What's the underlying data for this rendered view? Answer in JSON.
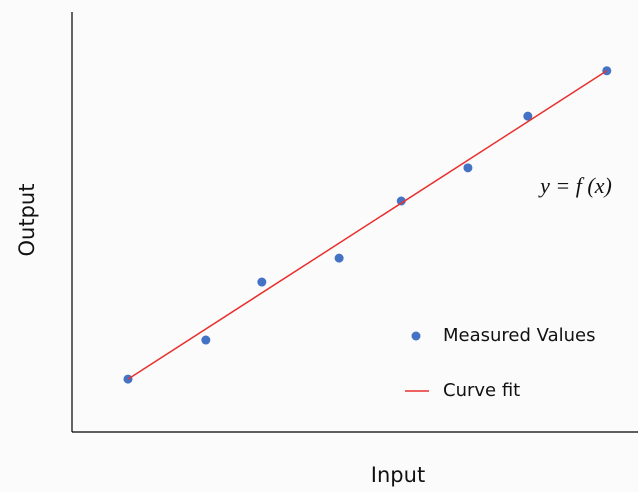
{
  "chart_data": {
    "type": "scatter",
    "x_label": "Input",
    "y_label": "Output",
    "annotation": "y = f (x)",
    "xlim": [
      0,
      10
    ],
    "ylim": [
      0,
      10
    ],
    "legend": "lower right",
    "series": [
      {
        "name": "Measured Values",
        "type": "scatter",
        "color": "#4472c4",
        "x": [
          1.0,
          2.39,
          3.39,
          4.77,
          5.88,
          7.07,
          8.14,
          9.55
        ],
        "values": [
          1.26,
          2.19,
          3.57,
          4.14,
          5.5,
          6.29,
          7.52,
          8.6
        ]
      },
      {
        "name": "Curve fit",
        "type": "line",
        "color": "#e8312f",
        "x": [
          1.0,
          9.55
        ],
        "values": [
          1.26,
          8.6
        ]
      }
    ]
  }
}
